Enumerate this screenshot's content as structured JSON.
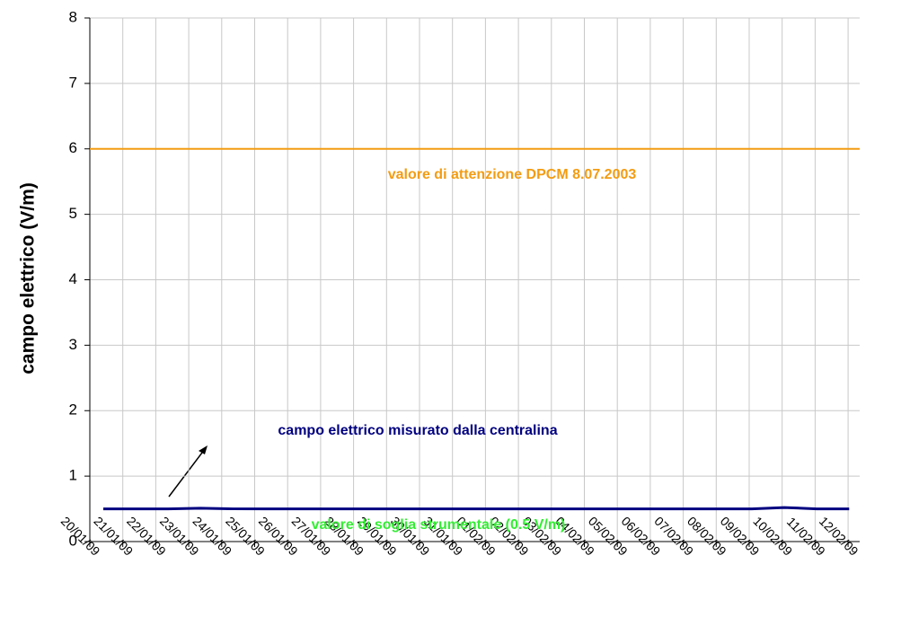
{
  "chart_data": {
    "type": "line",
    "y_label": "campo elettrico (V/m)",
    "categories": [
      "20/01/09",
      "21/01/09",
      "22/01/09",
      "23/01/09",
      "24/01/09",
      "25/01/09",
      "26/01/09",
      "27/01/09",
      "28/01/09",
      "29/01/09",
      "30/01/09",
      "31/01/09",
      "01/02/09",
      "02/02/09",
      "03/02/09",
      "04/02/09",
      "05/02/09",
      "06/02/09",
      "07/02/09",
      "08/02/09",
      "09/02/09",
      "10/02/09",
      "11/02/09",
      "12/02/09"
    ],
    "series": [
      {
        "name": "campo elettrico misurato dalla centralina",
        "color": "#000080",
        "values": [
          0.5,
          0.5,
          0.5,
          0.51,
          0.5,
          0.5,
          0.5,
          0.5,
          0.5,
          0.5,
          0.5,
          0.5,
          0.5,
          0.5,
          0.5,
          0.5,
          0.5,
          0.5,
          0.5,
          0.5,
          0.5,
          0.52,
          0.5,
          0.5
        ]
      }
    ],
    "reference_lines": [
      {
        "label": "valore di attenzione DPCM 8.07.2003",
        "value": 6,
        "color": "#f39c12"
      },
      {
        "label": "valore di soglia strumentale (0.5 V/m)",
        "value": 0.5,
        "color": "#33ee33"
      }
    ],
    "ylim": [
      0,
      8
    ],
    "yticks": [
      0,
      1,
      2,
      3,
      4,
      5,
      6,
      7,
      8
    ],
    "grid": true
  }
}
